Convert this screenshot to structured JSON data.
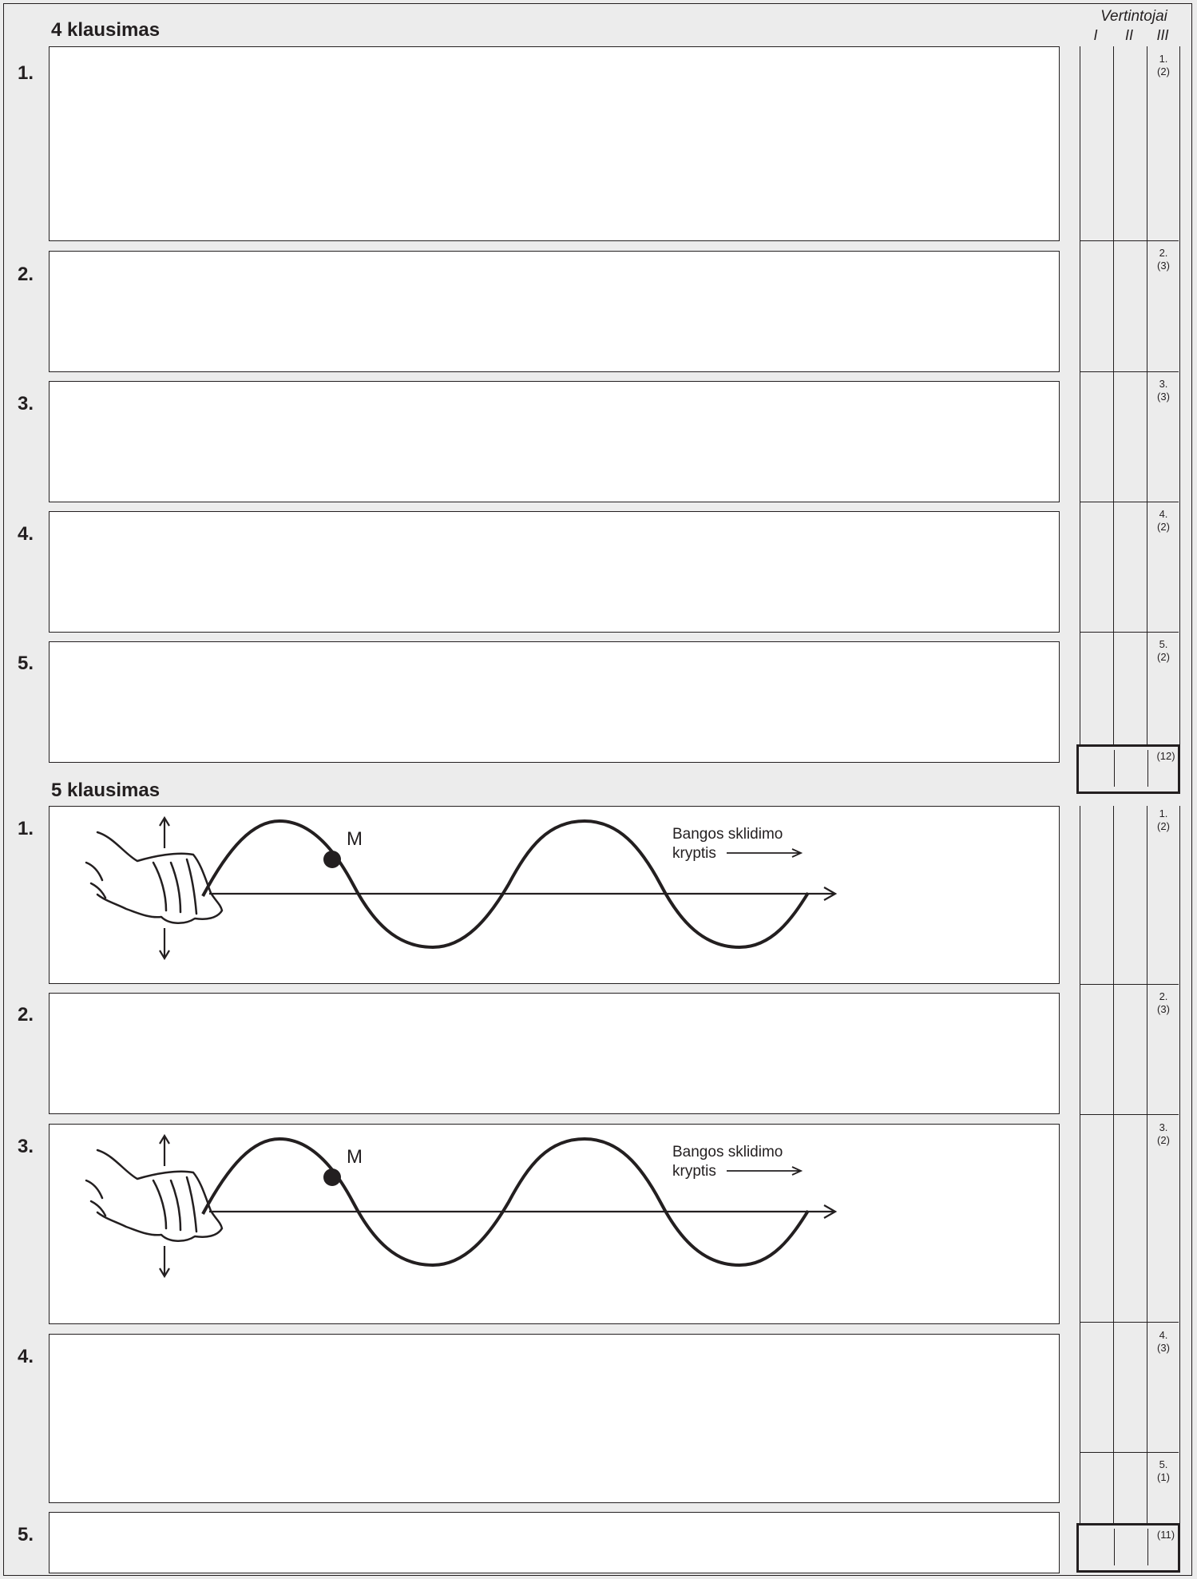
{
  "section4": {
    "title": "4 klausimas",
    "questions": [
      "1.",
      "2.",
      "3.",
      "4.",
      "5."
    ]
  },
  "section5": {
    "title": "5 klausimas",
    "questions": [
      "1.",
      "2.",
      "3.",
      "4.",
      "5."
    ]
  },
  "graders": {
    "title": "Vertintojai",
    "columns": [
      "I",
      "II",
      "III"
    ]
  },
  "section4_scores": [
    {
      "num": "1.",
      "points": "(2)"
    },
    {
      "num": "2.",
      "points": "(3)"
    },
    {
      "num": "3.",
      "points": "(3)"
    },
    {
      "num": "4.",
      "points": "(2)"
    },
    {
      "num": "5.",
      "points": "(2)"
    }
  ],
  "section4_total": "(12)",
  "section5_scores": [
    {
      "num": "1.",
      "points": "(2)"
    },
    {
      "num": "2.",
      "points": "(3)"
    },
    {
      "num": "3.",
      "points": "(2)"
    },
    {
      "num": "4.",
      "points": "(3)"
    },
    {
      "num": "5.",
      "points": "(1)"
    }
  ],
  "section5_total": "(11)",
  "wave_figure": {
    "point_label": "M",
    "direction_line1": "Bangos sklidimo",
    "direction_line2": "kryptis"
  }
}
